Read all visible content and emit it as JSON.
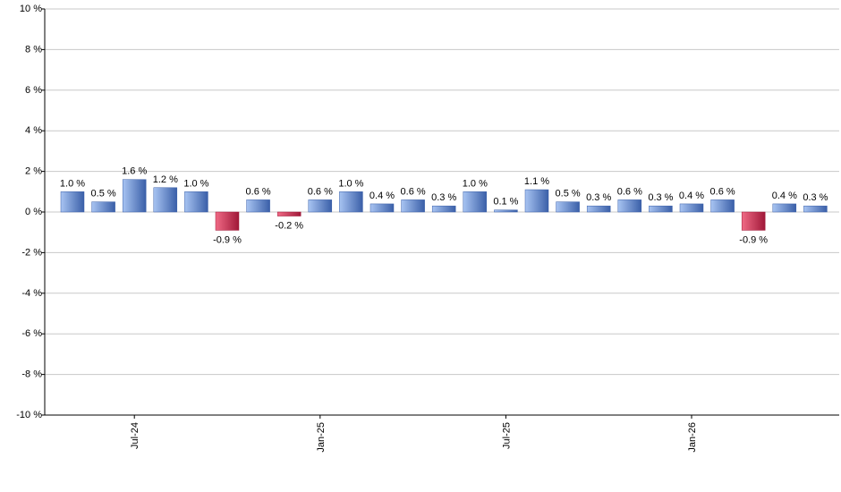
{
  "chart_data": {
    "type": "bar",
    "y_tick_labels": [
      "10 %",
      "8 %",
      "6 %",
      "4 %",
      "2 %",
      "0 %",
      "-2 %",
      "-4 %",
      "-6 %",
      "-8 %",
      "-10 %"
    ],
    "y_ticks": [
      10,
      8,
      6,
      4,
      2,
      0,
      -2,
      -4,
      -6,
      -8,
      -10
    ],
    "ylim": [
      -10,
      10
    ],
    "x_tick_labels": [
      "Jul-24",
      "Jan-25",
      "Jul-25",
      "Jan-26"
    ],
    "x_tick_positions": [
      2,
      8,
      14,
      20
    ],
    "values": [
      1.0,
      0.5,
      1.6,
      1.2,
      1.0,
      -0.9,
      0.6,
      -0.2,
      0.6,
      1.0,
      0.4,
      0.6,
      0.3,
      1.0,
      0.1,
      1.1,
      0.5,
      0.3,
      0.6,
      0.3,
      0.4,
      0.6,
      -0.9,
      0.4,
      0.3
    ],
    "value_labels": [
      "1.0 %",
      "0.5 %",
      "1.6 %",
      "1.2 %",
      "1.0 %",
      "-0.9 %",
      "0.6 %",
      "-0.2 %",
      "0.6 %",
      "1.0 %",
      "0.4 %",
      "0.6 %",
      "0.3 %",
      "1.0 %",
      "0.1 %",
      "1.1 %",
      "0.5 %",
      "0.3 %",
      "0.6 %",
      "0.3 %",
      "0.4 %",
      "0.6 %",
      "-0.9 %",
      "0.4 %",
      "0.3 %"
    ],
    "grid": true,
    "colors": {
      "positive_light": "#a8c4f2",
      "positive_dark": "#3a5fa8",
      "negative_light": "#f06a85",
      "negative_dark": "#a01838",
      "grid": "#c8c8c8",
      "axis": "#000000"
    }
  }
}
